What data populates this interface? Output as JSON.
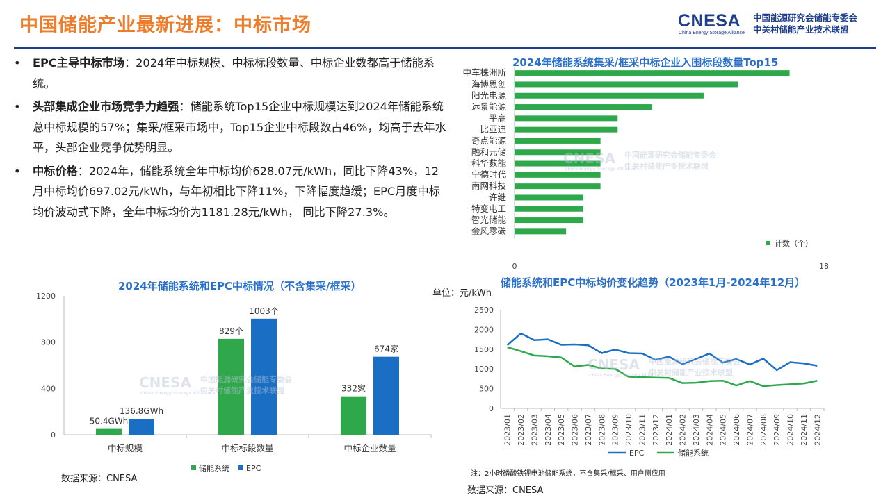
{
  "header": {
    "title_part1": "中国",
    "title_part2": "储能产业最新进展：中标市场",
    "logo_mark": "CNESA",
    "logo_sub": "China Energy Storage Alliance",
    "logo_org1": "中国能源研究会储能专委会",
    "logo_org2": "中关村储能产业技术联盟"
  },
  "bullets": [
    {
      "dot": "•",
      "lead": "EPC主导中标市场",
      "text": "：2024年中标规模、中标标段数量、中标企业数都高于储能系统。"
    },
    {
      "dot": "•",
      "lead": "头部集成企业市场竞争力趋强",
      "text": "：储能系统Top15企业中标规模达到2024年储能系统总中标规模的57%；集采/框采市场中，Top15企业中标段数占46%，均高于去年水平，头部企业竞争优势明显。"
    },
    {
      "dot": "•",
      "lead": "中标价格",
      "text": "：2024年，储能系统全年中标均价628.07元/kWh，同比下降43%，12月中标均价697.02元/kWh，与年初相比下降11%，下降幅度趋缓；EPC月度中标均价波动式下降，全年中标均价为1181.28元/kWh， 同比下降27.3%。"
    }
  ],
  "watermark": {
    "mark": "CNESA",
    "line1": "中国能源研究会储能专委会",
    "line2": "中关村储能产业技术联盟",
    "sub": "China Energy Storage Alliance"
  },
  "colors": {
    "green": "#2ea84a",
    "blue": "#1a6fc4",
    "title_blue": "#2a6fc9",
    "orange": "#ee7d2b",
    "navy": "#1f3f8c"
  },
  "chart_data": [
    {
      "type": "bar",
      "orientation": "horizontal",
      "title": "2024年储能系统集采/框采中标企业入围标段数量Top15",
      "categories": [
        "中车株洲所",
        "海博思创",
        "阳光电源",
        "远景能源",
        "平高",
        "比亚迪",
        "奇点能源",
        "融和元储",
        "科华数能",
        "宁德时代",
        "南网科技",
        "许继",
        "特变电工",
        "智光储能",
        "金风零碳"
      ],
      "series": [
        {
          "name": "计数（个）",
          "values": [
            16,
            13,
            11,
            8,
            6,
            6,
            5,
            5,
            5,
            5,
            5,
            4,
            4,
            4,
            3
          ]
        }
      ],
      "xlim": [
        0,
        18
      ],
      "xticks": [
        "0",
        "18"
      ],
      "legend": "bottom-right"
    },
    {
      "type": "bar",
      "title": "2024年储能系统和EPC中标情况（不含集采/框采）",
      "categories": [
        "中标规模",
        "中标标段数量",
        "中标企业数量"
      ],
      "series": [
        {
          "name": "储能系统",
          "values": [
            50.4,
            829,
            332
          ],
          "labels": [
            "50.4GWh",
            "829个",
            "332家"
          ]
        },
        {
          "name": "EPC",
          "values": [
            136.8,
            1003,
            674
          ],
          "labels": [
            "136.8GWh",
            "1003个",
            "674家"
          ]
        }
      ],
      "ylim": [
        0,
        1200
      ],
      "yticks": [
        "0",
        "400",
        "800",
        "1200"
      ],
      "legend": "bottom",
      "source": "数据来源：CNESA"
    },
    {
      "type": "line",
      "title": "储能系统和EPC中标均价变化趋势（2023年1月-2024年12月）",
      "unit": "单位：元/kWh",
      "x": [
        "2023/01",
        "2023/02",
        "2023/03",
        "2023/04",
        "2023/05",
        "2023/06",
        "2023/07",
        "2023/08",
        "2023/09",
        "2023/10",
        "2023/11",
        "2023/12",
        "2024/01",
        "2024/02",
        "2024/03",
        "2024/04",
        "2024/05",
        "2024/06",
        "2024/07",
        "2024/08",
        "2024/09",
        "2024/10",
        "2024/11",
        "2024/12"
      ],
      "series": [
        {
          "name": "EPC",
          "values": [
            1600,
            1900,
            1730,
            1750,
            1610,
            1620,
            1600,
            1400,
            1490,
            1400,
            1390,
            1230,
            1310,
            1120,
            1250,
            1390,
            1160,
            1250,
            1110,
            1260,
            970,
            1170,
            1140,
            1080
          ]
        },
        {
          "name": "储能系统",
          "values": [
            1550,
            1450,
            1340,
            1320,
            1290,
            1060,
            1100,
            1010,
            1000,
            800,
            790,
            780,
            770,
            640,
            650,
            690,
            700,
            580,
            690,
            560,
            590,
            610,
            630,
            700
          ]
        }
      ],
      "ylim": [
        0,
        2500
      ],
      "yticks": [
        "0",
        "500",
        "1000",
        "1500",
        "2000",
        "2500"
      ],
      "legend": "bottom",
      "note": "注：2小时磷酸铁锂电池储能系统，不含集采/框采、用户侧应用",
      "source": "数据来源：CNESA"
    }
  ]
}
